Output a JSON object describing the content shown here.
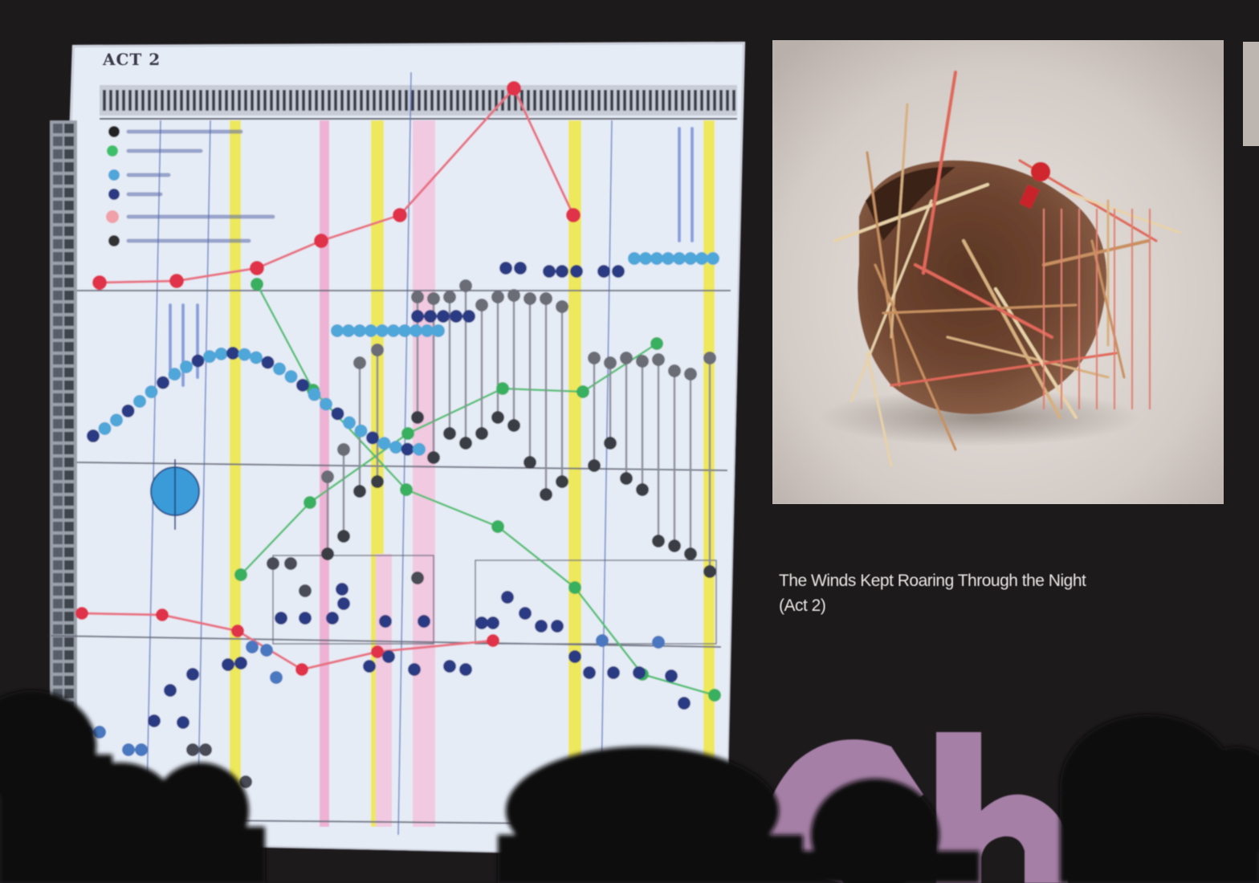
{
  "slide": {
    "score_heading": "ACT 2",
    "caption_line1": "The Winds Kept Roaring Through the Night",
    "caption_line2": "(Act 2)"
  },
  "colors": {
    "background": "#1d1a1c",
    "score_paper": "#e6ecf6",
    "accent_red": "#e0304a",
    "accent_green": "#38b060",
    "accent_blue": "#2c4b9a",
    "accent_lightblue": "#4fa6d8",
    "accent_yellow": "#f0e840",
    "accent_pink": "#f0a8d0",
    "logo_purple": "#a57fa6"
  }
}
